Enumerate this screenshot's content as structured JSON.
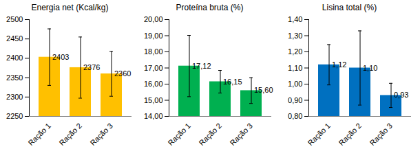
{
  "chart_data": [
    {
      "type": "bar",
      "title": "Energia net (Kcal/kg)",
      "categories": [
        "Ração 1",
        "Ração 2",
        "Ração 3"
      ],
      "values": [
        2403,
        2376,
        2360
      ],
      "errors": [
        73,
        79,
        58
      ],
      "color": "#ffc000",
      "ylim": [
        2250,
        2500
      ],
      "yticks": [
        2250,
        2300,
        2350,
        2400,
        2450,
        2500
      ],
      "data_labels": true
    },
    {
      "type": "bar",
      "title": "Proteína bruta (%)",
      "categories": [
        "Ração 1",
        "Ração 2",
        "Ração 3"
      ],
      "values": [
        17.12,
        16.15,
        15.6
      ],
      "value_labels": [
        "17,12",
        "16,15",
        "15,60"
      ],
      "errors": [
        1.9,
        0.7,
        0.8
      ],
      "color": "#00b050",
      "ylim": [
        14,
        20
      ],
      "yticks": [
        {
          "value": 14,
          "label": "14,00"
        },
        {
          "value": 15,
          "label": "15,00"
        },
        {
          "value": 16,
          "label": "16,00"
        },
        {
          "value": 17,
          "label": "17,00"
        },
        {
          "value": 18,
          "label": "18,00"
        },
        {
          "value": 19,
          "label": "19,00"
        },
        {
          "value": 20,
          "label": "20,00"
        }
      ],
      "data_labels": true
    },
    {
      "type": "bar",
      "title": "Lisina total (%)",
      "categories": [
        "Ração 1",
        "Ração 2",
        "Ração 3"
      ],
      "values": [
        1.12,
        1.1,
        0.93
      ],
      "value_labels": [
        "1,12",
        "1,10",
        "0,93"
      ],
      "errors": [
        0.125,
        0.23,
        0.075
      ],
      "color": "#0070c0",
      "ylim": [
        0.8,
        1.4
      ],
      "yticks": [
        {
          "value": 0.8,
          "label": "0,80"
        },
        {
          "value": 0.9,
          "label": "0,90"
        },
        {
          "value": 1.0,
          "label": "1,00"
        },
        {
          "value": 1.1,
          "label": "1,10"
        },
        {
          "value": 1.2,
          "label": "1,20"
        },
        {
          "value": 1.3,
          "label": "1,30"
        },
        {
          "value": 1.4,
          "label": "1,40"
        }
      ],
      "data_labels": true
    }
  ]
}
